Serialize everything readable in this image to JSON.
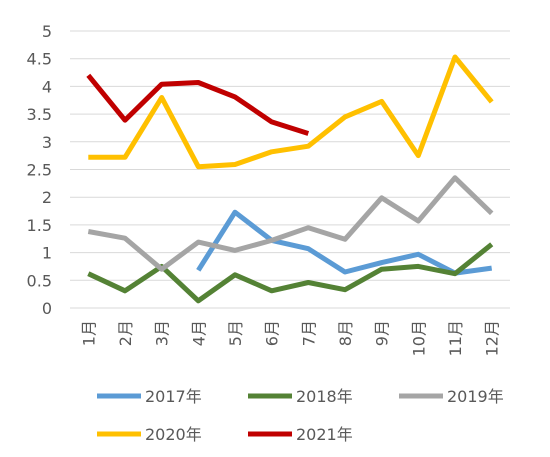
{
  "chart_data": {
    "type": "line",
    "categories": [
      "1月",
      "2月",
      "3月",
      "4月",
      "5月",
      "6月",
      "7月",
      "8月",
      "9月",
      "10月",
      "11月",
      "12月"
    ],
    "ylim": [
      0,
      5
    ],
    "yticks": [
      "0",
      "0.5",
      "1",
      "1.5",
      "2",
      "2.5",
      "3",
      "3.5",
      "4",
      "4.5",
      "5"
    ],
    "grid": true,
    "legend_position": "bottom",
    "series": [
      {
        "name": "2017年",
        "color": "#5b9bd5",
        "values": [
          null,
          null,
          null,
          0.68,
          1.73,
          1.22,
          1.07,
          0.65,
          0.82,
          0.97,
          0.63,
          0.72
        ]
      },
      {
        "name": "2018年",
        "color": "#548235",
        "values": [
          0.62,
          0.31,
          0.75,
          0.13,
          0.6,
          0.31,
          0.46,
          0.33,
          0.7,
          0.75,
          0.62,
          1.15
        ]
      },
      {
        "name": "2019年",
        "color": "#a5a5a5",
        "values": [
          1.38,
          1.26,
          0.7,
          1.19,
          1.04,
          1.22,
          1.45,
          1.24,
          1.99,
          1.57,
          2.35,
          1.71
        ]
      },
      {
        "name": "2020年",
        "color": "#ffc000",
        "values": [
          2.72,
          2.72,
          3.8,
          2.55,
          2.59,
          2.82,
          2.92,
          3.45,
          3.73,
          2.75,
          4.53,
          3.72
        ]
      },
      {
        "name": "2021年",
        "color": "#c00000",
        "values": [
          4.2,
          3.39,
          4.04,
          4.07,
          3.81,
          3.36,
          3.15,
          null,
          null,
          null,
          null,
          null
        ]
      }
    ]
  }
}
